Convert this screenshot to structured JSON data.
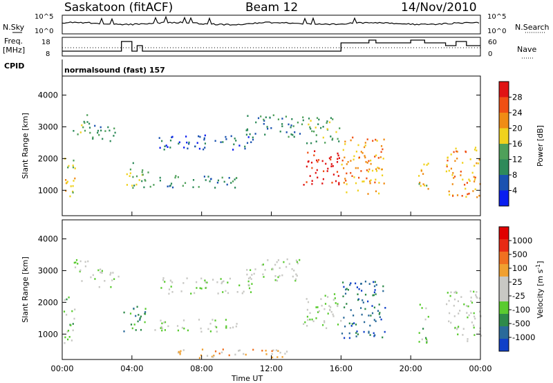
{
  "header": {
    "station": "Saskatoon (fitACF)",
    "beam": "Beam 12",
    "date": "14/Nov/2010"
  },
  "top_panel": {
    "left_label": "N.Sky",
    "right_label": "N.Search",
    "left_ticks": [
      "10^5",
      "10^0"
    ],
    "right_ticks": [
      "10^5",
      "10^0"
    ]
  },
  "freq_panel": {
    "left_label_1": "Freq.",
    "left_label_2": "[MHz]",
    "left_ticks": [
      "18",
      "8"
    ],
    "right_label": "Nave",
    "right_ticks": [
      "60",
      "0"
    ]
  },
  "cpid": {
    "label": "CPID",
    "value": "normalsound (fast) 157"
  },
  "colors": {
    "power": [
      "#0a1ef0",
      "#1a52b0",
      "#2e8a5a",
      "#4fa05a",
      "#f0d21e",
      "#f08c14",
      "#f05014",
      "#e01414"
    ],
    "velocity": [
      "#1040c8",
      "#2a6a9a",
      "#2e8a4a",
      "#5acb30",
      "#c8c8c4",
      "#c8c8c4",
      "#f0a030",
      "#f07020",
      "#e82a14",
      "#e00000"
    ]
  },
  "chart_data": [
    {
      "type": "heatmap",
      "title": "Power",
      "ylabel": "Slant Range [km]",
      "xlabel": "Time UT",
      "x_ticks": [
        "00:00",
        "04:00",
        "08:00",
        "12:00",
        "16:00",
        "20:00",
        "00:00"
      ],
      "y_ticks": [
        "1000",
        "2000",
        "3000",
        "4000"
      ],
      "ylim": [
        200,
        4600
      ],
      "colorbar_label": "Power [dB]",
      "colorbar_ticks": [
        "28",
        "24",
        "20",
        "16",
        "12",
        "8",
        "4"
      ],
      "scatter_regions": [
        {
          "t0": 0.0,
          "t1": 0.7,
          "r0": 700,
          "r1": 2200,
          "level": 4
        },
        {
          "t0": 0.6,
          "t1": 1.6,
          "r0": 2700,
          "r1": 3400,
          "level": 3
        },
        {
          "t0": 1.7,
          "t1": 3.2,
          "r0": 2500,
          "r1": 3100,
          "level": 2
        },
        {
          "t0": 3.5,
          "t1": 5.0,
          "r0": 1100,
          "r1": 1900,
          "level": 3
        },
        {
          "t0": 5.0,
          "t1": 10.0,
          "r0": 1100,
          "r1": 1500,
          "level": 2
        },
        {
          "t0": 5.5,
          "t1": 11.0,
          "r0": 2300,
          "r1": 2800,
          "level": 1
        },
        {
          "t0": 10.5,
          "t1": 13.8,
          "r0": 2700,
          "r1": 3400,
          "level": 2
        },
        {
          "t0": 13.8,
          "t1": 16.0,
          "r0": 1200,
          "r1": 2300,
          "level": 7
        },
        {
          "t0": 14.0,
          "t1": 16.0,
          "r0": 2500,
          "r1": 3400,
          "level": 3
        },
        {
          "t0": 16.0,
          "t1": 18.5,
          "r0": 900,
          "r1": 2700,
          "level": 5
        },
        {
          "t0": 20.4,
          "t1": 21.0,
          "r0": 700,
          "r1": 2000,
          "level": 4
        },
        {
          "t0": 22.0,
          "t1": 24.0,
          "r0": 800,
          "r1": 2400,
          "level": 5
        }
      ]
    },
    {
      "type": "heatmap",
      "title": "Velocity",
      "ylabel": "Slant Range [km]",
      "xlabel": "Time UT",
      "x_ticks": [
        "00:00",
        "04:00",
        "08:00",
        "12:00",
        "16:00",
        "20:00",
        "00:00"
      ],
      "y_ticks": [
        "1000",
        "2000",
        "3000",
        "4000"
      ],
      "ylim": [
        200,
        4600
      ],
      "colorbar_label": "Velocity [m s^-1]",
      "colorbar_ticks": [
        "1000",
        "500",
        "100",
        "25",
        "-25",
        "-100",
        "-500",
        "-1000"
      ],
      "scatter_regions": [
        {
          "t0": 0.0,
          "t1": 0.7,
          "r0": 700,
          "r1": 2200,
          "level": 3
        },
        {
          "t0": 0.6,
          "t1": 1.6,
          "r0": 2700,
          "r1": 3400,
          "level": 4
        },
        {
          "t0": 1.7,
          "t1": 3.2,
          "r0": 2500,
          "r1": 3100,
          "level": 4
        },
        {
          "t0": 3.5,
          "t1": 5.0,
          "r0": 1100,
          "r1": 1900,
          "level": 2
        },
        {
          "t0": 5.0,
          "t1": 10.0,
          "r0": 1100,
          "r1": 1500,
          "level": 4
        },
        {
          "t0": 5.5,
          "t1": 11.0,
          "r0": 2300,
          "r1": 2800,
          "level": 4
        },
        {
          "t0": 10.5,
          "t1": 13.8,
          "r0": 2700,
          "r1": 3400,
          "level": 4
        },
        {
          "t0": 13.8,
          "t1": 16.0,
          "r0": 1200,
          "r1": 2300,
          "level": 4
        },
        {
          "t0": 16.0,
          "t1": 18.5,
          "r0": 900,
          "r1": 2700,
          "level": 1
        },
        {
          "t0": 20.4,
          "t1": 21.0,
          "r0": 700,
          "r1": 2000,
          "level": 3
        },
        {
          "t0": 22.0,
          "t1": 24.0,
          "r0": 800,
          "r1": 2400,
          "level": 4
        },
        {
          "t0": 6.0,
          "t1": 13.0,
          "r0": 250,
          "r1": 550,
          "level": 6
        }
      ]
    }
  ]
}
